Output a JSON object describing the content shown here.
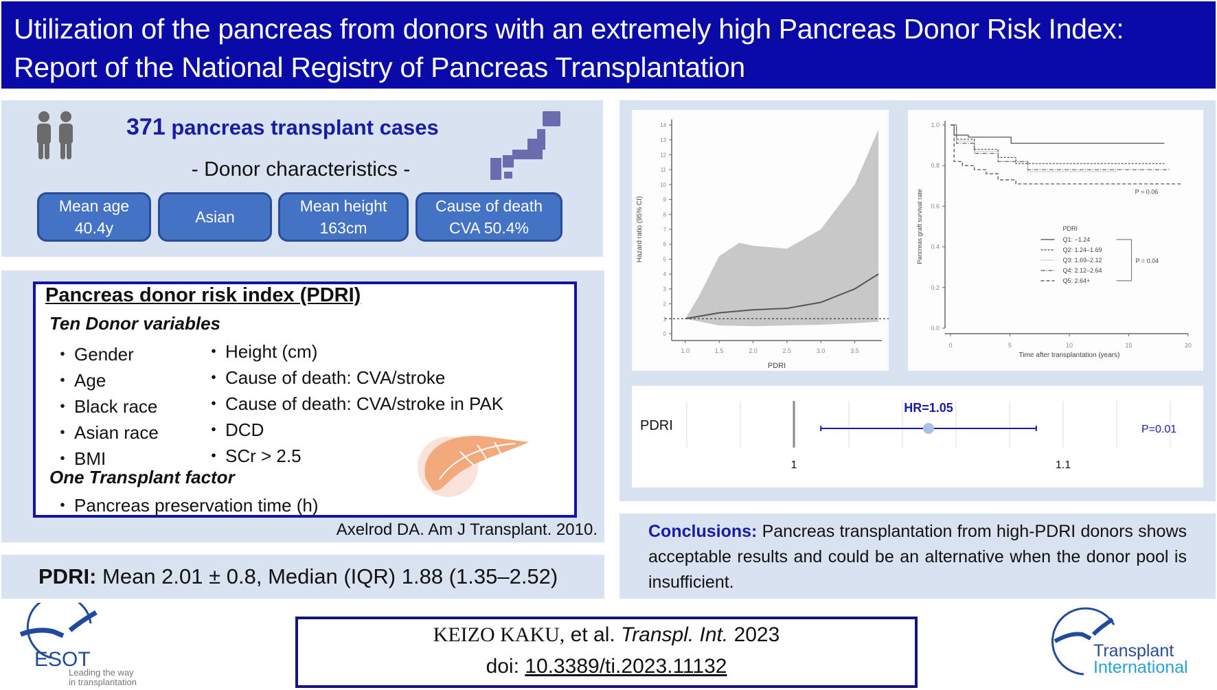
{
  "header": {
    "title_line1": "Utilization of the pancreas from donors with an extremely high Pancreas Donor Risk Index:",
    "title_line2": "Report of the National Registry of Pancreas Transplantation"
  },
  "summary": {
    "case_count": "371",
    "case_label": "pancreas transplant cases",
    "donor_heading": "- Donor characteristics -",
    "stats": [
      {
        "line1": "Mean age",
        "line2": "40.4y"
      },
      {
        "line1": "Asian",
        "line2": ""
      },
      {
        "line1": "Mean height",
        "line2": "163cm"
      },
      {
        "line1": "Cause of death",
        "line2": "CVA 50.4%"
      }
    ]
  },
  "pdri_box": {
    "title": "Pancreas donor risk index (PDRI)",
    "donor_heading": "Ten Donor variables",
    "left_vars": [
      "Gender",
      "Age",
      "Black race",
      "Asian race",
      "BMI"
    ],
    "right_vars": [
      "Height (cm)",
      "Cause of death: CVA/stroke",
      "Cause of death: CVA/stroke  in PAK",
      "DCD",
      "SCr > 2.5"
    ],
    "transplant_heading": "One Transplant  factor",
    "transplant_vars": [
      "Pancreas preservation  time (h)"
    ],
    "citation": "Axelrod DA. Am J Transplant. 2010."
  },
  "pdri_stat": {
    "label": "PDRI:",
    "text": "Mean 2.01 ± 0.8, Median (IQR) 1.88 (1.35–2.52)"
  },
  "conclusions": {
    "label": "Conclusions:",
    "text": "Pancreas transplantation from high-PDRI donors shows acceptable results and could be an alternative  when the donor pool is insufficient."
  },
  "reference": {
    "authors": "KEIZO KAKU,",
    "etal": "et al.",
    "journal": "Transpl. Int.",
    "year": "2023",
    "doi_label": "doi:",
    "doi": "10.3389/ti.2023.11132"
  },
  "logos": {
    "esot_name": "ESOT",
    "esot_tag1": "Leading the way",
    "esot_tag2": "in transplantation",
    "ti_line1": "Transplant",
    "ti_line2": "International"
  },
  "colors": {
    "title_bg": "#0a0aa8",
    "panel_bg": "#d9e2f1",
    "stat_box": "#4472c4",
    "accent_text": "#1a1aa6",
    "ci_band": "#c8c8c8"
  },
  "chart_data": [
    {
      "type": "area",
      "title": "",
      "xlabel": "PDRI",
      "ylabel": "Hazard ratio (95% CI)",
      "xlim": [
        0.8,
        3.9
      ],
      "ylim": [
        0,
        14
      ],
      "xticks": [
        "1.0",
        "1.5",
        "2.0",
        "2.5",
        "3.0",
        "3.5"
      ],
      "yticks": [
        "0",
        "1",
        "2",
        "3",
        "4",
        "5",
        "6",
        "7",
        "8",
        "9",
        "10",
        "11",
        "12",
        "13",
        "14"
      ],
      "reference_line": 1,
      "series": [
        {
          "name": "HR",
          "x": [
            1.0,
            1.5,
            2.0,
            2.5,
            3.0,
            3.5,
            3.85
          ],
          "values": [
            1.0,
            1.4,
            1.6,
            1.7,
            2.1,
            3.0,
            4.0
          ]
        },
        {
          "name": "CI upper",
          "x": [
            1.0,
            1.2,
            1.5,
            1.8,
            2.0,
            2.5,
            3.0,
            3.5,
            3.85
          ],
          "values": [
            1.0,
            2.5,
            5.2,
            6.1,
            5.9,
            5.7,
            7.0,
            10.0,
            13.7
          ]
        },
        {
          "name": "CI lower",
          "x": [
            1.0,
            1.5,
            2.0,
            2.5,
            3.0,
            3.5,
            3.85
          ],
          "values": [
            1.0,
            0.55,
            0.5,
            0.55,
            0.6,
            0.7,
            0.8
          ]
        }
      ]
    },
    {
      "type": "line",
      "title": "",
      "xlabel": "Time after transplantation (years)",
      "ylabel": "Pancreas graft survival rate",
      "xlim": [
        0,
        20
      ],
      "ylim": [
        0,
        1.0
      ],
      "xticks": [
        "0",
        "5",
        "10",
        "15",
        "20"
      ],
      "yticks": [
        "0.0",
        "0.2",
        "0.4",
        "0.6",
        "0.8",
        "1.0"
      ],
      "legend_title": "PDRI",
      "legend_position": "center-right",
      "annotations": [
        "P = 0.06",
        "P = 0.04"
      ],
      "series": [
        {
          "name": "Q1: −1.24",
          "x": [
            0,
            0.3,
            1.5,
            5,
            5.1,
            18
          ],
          "values": [
            1.0,
            0.95,
            0.94,
            0.94,
            0.91,
            0.91
          ]
        },
        {
          "name": "Q2: 1.24–1.69",
          "x": [
            0,
            0.5,
            2,
            4,
            5.5,
            18
          ],
          "values": [
            1.0,
            0.93,
            0.88,
            0.84,
            0.81,
            0.81
          ]
        },
        {
          "name": "Q3: 1.69–2.12",
          "x": [
            0,
            0.5,
            2,
            4,
            6.5,
            14
          ],
          "values": [
            1.0,
            0.92,
            0.87,
            0.82,
            0.77,
            0.77
          ]
        },
        {
          "name": "Q4: 2.12–2.64",
          "x": [
            0,
            0.5,
            2,
            4,
            6.5,
            18.5
          ],
          "values": [
            1.0,
            0.91,
            0.86,
            0.82,
            0.78,
            0.78
          ]
        },
        {
          "name": "Q5: 2.64+",
          "x": [
            0,
            0.3,
            1,
            2,
            3,
            4,
            5.5,
            19.5
          ],
          "values": [
            1.0,
            0.82,
            0.8,
            0.78,
            0.76,
            0.73,
            0.71,
            0.71
          ]
        }
      ]
    },
    {
      "type": "scatter",
      "title": "",
      "row_label": "PDRI",
      "hr_label": "HR=1.05",
      "p_label": "P=0.01",
      "xticks": [
        "1",
        "1.1"
      ],
      "xlim": [
        0.95,
        1.12
      ],
      "estimate": 1.05,
      "ci": [
        1.01,
        1.09
      ]
    }
  ]
}
